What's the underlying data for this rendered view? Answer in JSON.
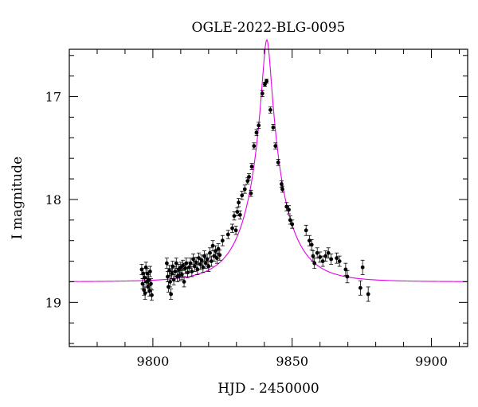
{
  "chart_data": {
    "type": "scatter",
    "title": "OGLE-2022-BLG-0095",
    "xlabel": "HJD - 2450000",
    "ylabel": "I magnitude",
    "xlim": [
      9770,
      9913
    ],
    "ylim": [
      19.43,
      16.54
    ],
    "y_inverted": true,
    "x_ticks": [
      9800,
      9850,
      9900
    ],
    "x_tick_labels": [
      "9800",
      "9850",
      "9900"
    ],
    "y_ticks": [
      17,
      18,
      19
    ],
    "y_tick_labels": [
      "17",
      "18",
      "19"
    ],
    "grid": false,
    "colors": {
      "model": "#e600e6",
      "points": "#000000"
    },
    "series": [
      {
        "type": "errorbar-points",
        "points": [
          [
            9796.0,
            18.68,
            0.05
          ],
          [
            9796.3,
            18.82,
            0.05
          ],
          [
            9796.5,
            18.72,
            0.05
          ],
          [
            9796.8,
            18.88,
            0.05
          ],
          [
            9797.0,
            18.76,
            0.05
          ],
          [
            9797.2,
            18.91,
            0.06
          ],
          [
            9797.5,
            18.66,
            0.05
          ],
          [
            9797.8,
            18.8,
            0.05
          ],
          [
            9798.0,
            18.72,
            0.05
          ],
          [
            9798.3,
            18.85,
            0.05
          ],
          [
            9798.5,
            18.78,
            0.05
          ],
          [
            9798.8,
            18.89,
            0.05
          ],
          [
            9799.0,
            18.7,
            0.05
          ],
          [
            9799.3,
            18.82,
            0.05
          ],
          [
            9799.6,
            18.93,
            0.05
          ],
          [
            9805.0,
            18.62,
            0.05
          ],
          [
            9805.3,
            18.75,
            0.05
          ],
          [
            9805.6,
            18.85,
            0.05
          ],
          [
            9805.9,
            18.69,
            0.05
          ],
          [
            9806.2,
            18.8,
            0.05
          ],
          [
            9806.5,
            18.92,
            0.05
          ],
          [
            9806.8,
            18.72,
            0.05
          ],
          [
            9807.1,
            18.65,
            0.05
          ],
          [
            9807.5,
            18.78,
            0.05
          ],
          [
            9808.0,
            18.7,
            0.05
          ],
          [
            9808.4,
            18.62,
            0.05
          ],
          [
            9808.8,
            18.75,
            0.05
          ],
          [
            9809.2,
            18.68,
            0.05
          ],
          [
            9809.6,
            18.74,
            0.05
          ],
          [
            9810.0,
            18.66,
            0.05
          ],
          [
            9810.4,
            18.73,
            0.05
          ],
          [
            9810.8,
            18.64,
            0.05
          ],
          [
            9811.2,
            18.8,
            0.05
          ],
          [
            9811.6,
            18.67,
            0.05
          ],
          [
            9812.0,
            18.62,
            0.05
          ],
          [
            9812.5,
            18.71,
            0.05
          ],
          [
            9813.0,
            18.66,
            0.05
          ],
          [
            9813.5,
            18.62,
            0.05
          ],
          [
            9814.0,
            18.7,
            0.05
          ],
          [
            9814.5,
            18.58,
            0.05
          ],
          [
            9815.0,
            18.65,
            0.05
          ],
          [
            9815.5,
            18.61,
            0.05
          ],
          [
            9816.0,
            18.68,
            0.05
          ],
          [
            9816.5,
            18.57,
            0.05
          ],
          [
            9817.0,
            18.63,
            0.05
          ],
          [
            9817.5,
            18.59,
            0.05
          ],
          [
            9818.0,
            18.66,
            0.05
          ],
          [
            9818.5,
            18.55,
            0.05
          ],
          [
            9819.0,
            18.62,
            0.05
          ],
          [
            9819.5,
            18.58,
            0.05
          ],
          [
            9820.0,
            18.65,
            0.05
          ],
          [
            9820.5,
            18.52,
            0.05
          ],
          [
            9821.0,
            18.6,
            0.05
          ],
          [
            9821.5,
            18.45,
            0.05
          ],
          [
            9822.0,
            18.55,
            0.05
          ],
          [
            9822.5,
            18.5,
            0.05
          ],
          [
            9823.0,
            18.57,
            0.05
          ],
          [
            9823.5,
            18.48,
            0.05
          ],
          [
            9824.0,
            18.54,
            0.05
          ],
          [
            9825.0,
            18.4,
            0.05
          ],
          [
            9827.0,
            18.34,
            0.04
          ],
          [
            9828.5,
            18.28,
            0.04
          ],
          [
            9829.2,
            18.16,
            0.04
          ],
          [
            9829.8,
            18.3,
            0.04
          ],
          [
            9830.3,
            18.12,
            0.04
          ],
          [
            9830.8,
            18.03,
            0.04
          ],
          [
            9831.3,
            18.15,
            0.04
          ],
          [
            9832.0,
            17.96,
            0.04
          ],
          [
            9833.0,
            17.9,
            0.04
          ],
          [
            9834.0,
            17.82,
            0.03
          ],
          [
            9834.5,
            17.78,
            0.03
          ],
          [
            9835.2,
            17.94,
            0.03
          ],
          [
            9835.5,
            17.68,
            0.03
          ],
          [
            9836.3,
            17.48,
            0.03
          ],
          [
            9837.2,
            17.35,
            0.03
          ],
          [
            9838.0,
            17.28,
            0.03
          ],
          [
            9839.3,
            16.97,
            0.03
          ],
          [
            9840.2,
            16.88,
            0.02
          ],
          [
            9840.8,
            16.85,
            0.02
          ],
          [
            9842.2,
            17.13,
            0.03
          ],
          [
            9843.2,
            17.3,
            0.03
          ],
          [
            9844.0,
            17.48,
            0.03
          ],
          [
            9845.0,
            17.64,
            0.03
          ],
          [
            9846.2,
            17.85,
            0.03
          ],
          [
            9846.5,
            17.9,
            0.03
          ],
          [
            9848.0,
            18.07,
            0.04
          ],
          [
            9848.8,
            18.1,
            0.04
          ],
          [
            9849.3,
            18.2,
            0.04
          ],
          [
            9850.0,
            18.24,
            0.04
          ],
          [
            9855.0,
            18.3,
            0.05
          ],
          [
            9856.2,
            18.4,
            0.05
          ],
          [
            9857.0,
            18.44,
            0.05
          ],
          [
            9857.5,
            18.55,
            0.05
          ],
          [
            9858.0,
            18.62,
            0.05
          ],
          [
            9859.0,
            18.52,
            0.05
          ],
          [
            9860.0,
            18.56,
            0.05
          ],
          [
            9861.0,
            18.6,
            0.05
          ],
          [
            9862.0,
            18.55,
            0.05
          ],
          [
            9863.0,
            18.52,
            0.05
          ],
          [
            9864.0,
            18.58,
            0.05
          ],
          [
            9866.0,
            18.57,
            0.05
          ],
          [
            9867.0,
            18.6,
            0.05
          ],
          [
            9869.2,
            18.68,
            0.06
          ],
          [
            9869.8,
            18.75,
            0.06
          ],
          [
            9874.5,
            18.86,
            0.07
          ],
          [
            9875.3,
            18.66,
            0.07
          ],
          [
            9877.3,
            18.92,
            0.07
          ]
        ]
      },
      {
        "type": "model-curve",
        "t0": 9840.9,
        "tE": 13,
        "u0": 0.115,
        "baseline_mag": 18.8
      }
    ]
  }
}
